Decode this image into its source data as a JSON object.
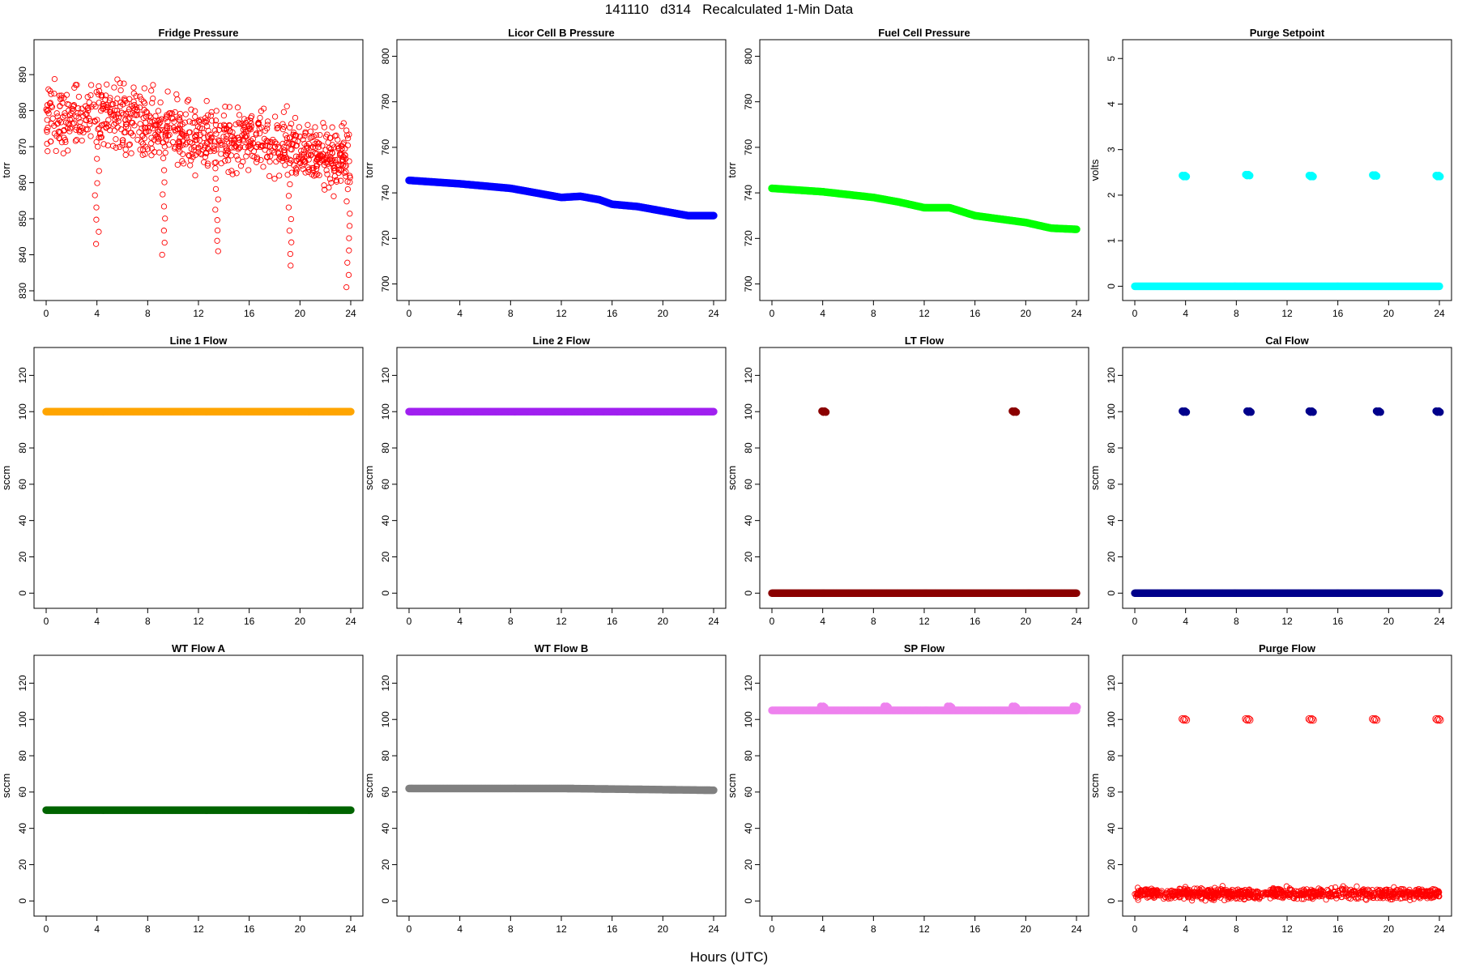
{
  "header": {
    "title": "141110   d314   Recalculated 1-Min Data"
  },
  "footer": {
    "xlabel": "Hours (UTC)"
  },
  "chart_data": [
    {
      "type": "scatter",
      "title": "Fridge Pressure",
      "ylabel": "torr",
      "color": "#ff0000",
      "marker": "open",
      "xlim": [
        0,
        24
      ],
      "ylim": [
        830,
        897
      ],
      "xticks": [
        0,
        4,
        8,
        12,
        16,
        20,
        24
      ],
      "yticks": [
        830,
        840,
        850,
        860,
        870,
        880,
        890
      ],
      "series": [
        {
          "pattern": "scatter",
          "trend": [
            [
              0,
              878
            ],
            [
              6,
              878
            ],
            [
              12,
              872
            ],
            [
              18,
              872
            ],
            [
              24,
              866
            ]
          ],
          "spread": 6,
          "dips": [
            [
              4,
              843
            ],
            [
              9.2,
              840
            ],
            [
              13.5,
              841
            ],
            [
              19.2,
              837
            ],
            [
              23.8,
              831
            ]
          ]
        }
      ]
    },
    {
      "type": "scatter",
      "title": "Licor Cell B Pressure",
      "ylabel": "torr",
      "color": "#0000ff",
      "marker": "filled",
      "xlim": [
        0,
        24
      ],
      "ylim": [
        697,
        803
      ],
      "xticks": [
        0,
        4,
        8,
        12,
        16,
        20,
        24
      ],
      "yticks": [
        700,
        720,
        740,
        760,
        780,
        800
      ],
      "series": [
        {
          "pattern": "line",
          "points": [
            [
              0,
              745.5
            ],
            [
              4,
              744
            ],
            [
              8,
              742
            ],
            [
              10,
              740
            ],
            [
              12,
              738
            ],
            [
              13.5,
              738.5
            ],
            [
              15,
              737
            ],
            [
              16,
              735
            ],
            [
              18,
              734
            ],
            [
              20,
              732
            ],
            [
              22,
              730
            ],
            [
              24,
              730
            ]
          ]
        }
      ]
    },
    {
      "type": "scatter",
      "title": "Fuel Cell Pressure",
      "ylabel": "torr",
      "color": "#00ff00",
      "marker": "filled",
      "xlim": [
        0,
        24
      ],
      "ylim": [
        697,
        803
      ],
      "xticks": [
        0,
        4,
        8,
        12,
        16,
        20,
        24
      ],
      "yticks": [
        700,
        720,
        740,
        760,
        780,
        800
      ],
      "series": [
        {
          "pattern": "line",
          "points": [
            [
              0,
              742
            ],
            [
              4,
              740.5
            ],
            [
              8,
              738
            ],
            [
              10,
              736
            ],
            [
              12,
              733.5
            ],
            [
              14,
              733.5
            ],
            [
              16,
              730
            ],
            [
              18,
              728.5
            ],
            [
              20,
              727
            ],
            [
              22,
              724.5
            ],
            [
              24,
              724
            ]
          ]
        }
      ]
    },
    {
      "type": "scatter",
      "title": "Purge Setpoint",
      "ylabel": "volts",
      "color": "#00ffff",
      "marker": "filled",
      "xlim": [
        0,
        24
      ],
      "ylim": [
        -0.1,
        5.2
      ],
      "xticks": [
        0,
        4,
        8,
        12,
        16,
        20,
        24
      ],
      "yticks": [
        0,
        1,
        2,
        3,
        4,
        5
      ],
      "series": [
        {
          "pattern": "line",
          "points": [
            [
              0,
              0
            ],
            [
              24,
              0
            ]
          ]
        },
        {
          "pattern": "clusters",
          "points": [
            [
              3.9,
              2.42
            ],
            [
              8.9,
              2.44
            ],
            [
              13.9,
              2.42
            ],
            [
              18.9,
              2.43
            ],
            [
              23.9,
              2.42
            ]
          ]
        }
      ]
    },
    {
      "type": "scatter",
      "title": "Line 1 Flow",
      "ylabel": "sccm",
      "color": "#ffa500",
      "marker": "filled",
      "xlim": [
        0,
        24
      ],
      "ylim": [
        -3,
        130
      ],
      "xticks": [
        0,
        4,
        8,
        12,
        16,
        20,
        24
      ],
      "yticks": [
        0,
        20,
        40,
        60,
        80,
        100,
        120
      ],
      "series": [
        {
          "pattern": "line",
          "points": [
            [
              0,
              100
            ],
            [
              24,
              100
            ]
          ]
        }
      ]
    },
    {
      "type": "scatter",
      "title": "Line 2 Flow",
      "ylabel": "sccm",
      "color": "#a020f0",
      "marker": "filled",
      "xlim": [
        0,
        24
      ],
      "ylim": [
        -3,
        130
      ],
      "xticks": [
        0,
        4,
        8,
        12,
        16,
        20,
        24
      ],
      "yticks": [
        0,
        20,
        40,
        60,
        80,
        100,
        120
      ],
      "series": [
        {
          "pattern": "line",
          "points": [
            [
              0,
              100
            ],
            [
              24,
              100
            ]
          ]
        }
      ]
    },
    {
      "type": "scatter",
      "title": "LT Flow",
      "ylabel": "sccm",
      "color": "#8b0000",
      "marker": "filled",
      "xlim": [
        0,
        24
      ],
      "ylim": [
        -3,
        130
      ],
      "xticks": [
        0,
        4,
        8,
        12,
        16,
        20,
        24
      ],
      "yticks": [
        0,
        20,
        40,
        60,
        80,
        100,
        120
      ],
      "series": [
        {
          "pattern": "line",
          "points": [
            [
              0,
              0
            ],
            [
              24,
              0
            ]
          ]
        },
        {
          "pattern": "clusters",
          "points": [
            [
              4.1,
              100
            ],
            [
              19.1,
              100
            ]
          ]
        }
      ]
    },
    {
      "type": "scatter",
      "title": "Cal Flow",
      "ylabel": "sccm",
      "color": "#00008b",
      "marker": "filled",
      "xlim": [
        0,
        24
      ],
      "ylim": [
        -3,
        130
      ],
      "xticks": [
        0,
        4,
        8,
        12,
        16,
        20,
        24
      ],
      "yticks": [
        0,
        20,
        40,
        60,
        80,
        100,
        120
      ],
      "series": [
        {
          "pattern": "line",
          "points": [
            [
              0,
              0
            ],
            [
              24,
              0
            ]
          ]
        },
        {
          "pattern": "clusters",
          "points": [
            [
              3.9,
              100
            ],
            [
              9,
              100
            ],
            [
              13.9,
              100
            ],
            [
              19.2,
              100
            ],
            [
              23.9,
              100
            ]
          ]
        }
      ]
    },
    {
      "type": "scatter",
      "title": "WT Flow A",
      "ylabel": "sccm",
      "color": "#006400",
      "marker": "filled",
      "xlim": [
        0,
        24
      ],
      "ylim": [
        -3,
        130
      ],
      "xticks": [
        0,
        4,
        8,
        12,
        16,
        20,
        24
      ],
      "yticks": [
        0,
        20,
        40,
        60,
        80,
        100,
        120
      ],
      "series": [
        {
          "pattern": "line",
          "points": [
            [
              0,
              50
            ],
            [
              24,
              50
            ]
          ]
        }
      ]
    },
    {
      "type": "scatter",
      "title": "WT Flow B",
      "ylabel": "sccm",
      "color": "#808080",
      "marker": "filled",
      "xlim": [
        0,
        24
      ],
      "ylim": [
        -3,
        130
      ],
      "xticks": [
        0,
        4,
        8,
        12,
        16,
        20,
        24
      ],
      "yticks": [
        0,
        20,
        40,
        60,
        80,
        100,
        120
      ],
      "series": [
        {
          "pattern": "line",
          "points": [
            [
              0,
              62
            ],
            [
              12,
              62
            ],
            [
              24,
              61
            ]
          ]
        }
      ]
    },
    {
      "type": "scatter",
      "title": "SP Flow",
      "ylabel": "sccm",
      "color": "#ee82ee",
      "marker": "filled",
      "xlim": [
        0,
        24
      ],
      "ylim": [
        -3,
        130
      ],
      "xticks": [
        0,
        4,
        8,
        12,
        16,
        20,
        24
      ],
      "yticks": [
        0,
        20,
        40,
        60,
        80,
        100,
        120
      ],
      "series": [
        {
          "pattern": "line",
          "points": [
            [
              0,
              105
            ],
            [
              24,
              105
            ]
          ]
        },
        {
          "pattern": "clusters",
          "points": [
            [
              4,
              107
            ],
            [
              9,
              107
            ],
            [
              14,
              107
            ],
            [
              19.1,
              107
            ],
            [
              23.9,
              107
            ]
          ]
        }
      ]
    },
    {
      "type": "scatter",
      "title": "Purge Flow",
      "ylabel": "sccm",
      "color": "#ff0000",
      "marker": "open",
      "xlim": [
        0,
        24
      ],
      "ylim": [
        -3,
        130
      ],
      "xticks": [
        0,
        4,
        8,
        12,
        16,
        20,
        24
      ],
      "yticks": [
        0,
        20,
        40,
        60,
        80,
        100,
        120
      ],
      "series": [
        {
          "pattern": "scatter",
          "trend": [
            [
              0,
              4
            ],
            [
              24,
              4
            ]
          ],
          "spread": 2,
          "dips": []
        },
        {
          "pattern": "clusters",
          "points": [
            [
              3.9,
              100
            ],
            [
              8.9,
              100
            ],
            [
              13.9,
              100
            ],
            [
              18.9,
              100
            ],
            [
              23.9,
              100
            ]
          ]
        }
      ]
    }
  ]
}
